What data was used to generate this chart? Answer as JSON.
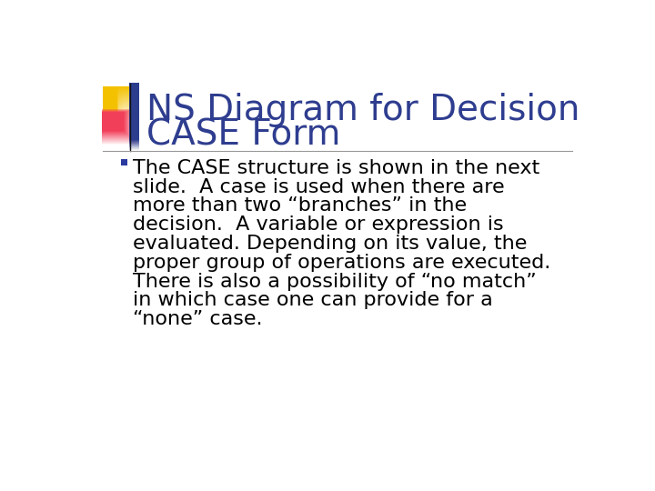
{
  "title_line1": "NS Diagram for Decision",
  "title_line2": "CASE Form",
  "title_color": "#2E3D8F",
  "background_color": "#FFFFFF",
  "bullet_color": "#000000",
  "bullet_marker_color": "#2B3A9F",
  "title_fontsize": 28,
  "body_fontsize": 16,
  "separator_color": "#999999",
  "deco_gold_color": "#F5C200",
  "deco_red_color": "#E84060",
  "deco_blue_color": "#2E3D8F",
  "bullet_lines": [
    "The CASE structure is shown in the next",
    "slide.  A case is used when there are",
    "more than two “branches” in the",
    "decision.  A variable or expression is",
    "evaluated. Depending on its value, the",
    "proper group of operations are executed.",
    "There is also a possibility of “no match”",
    "in which case one can provide for a",
    "“none” case."
  ]
}
